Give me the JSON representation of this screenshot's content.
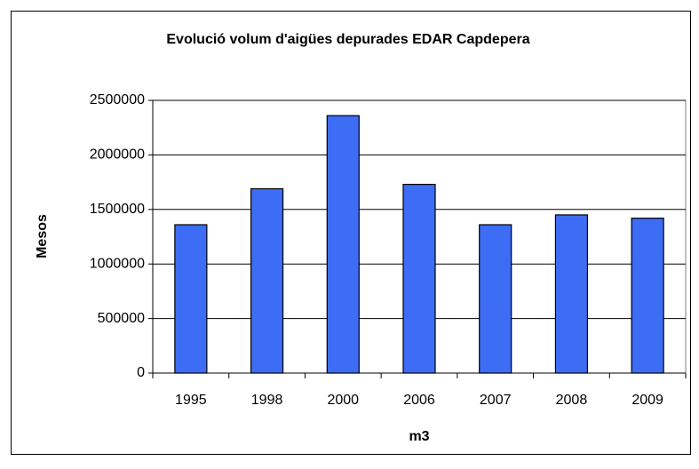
{
  "chart_data": {
    "type": "bar",
    "title": "Evolució volum d'aigües depurades EDAR Capdepera",
    "x_label": "m3",
    "y_label": "Mesos",
    "categories": [
      "1995",
      "1998",
      "2000",
      "2006",
      "2007",
      "2008",
      "2009"
    ],
    "values": [
      1360000,
      1690000,
      2360000,
      1730000,
      1360000,
      1450000,
      1420000
    ],
    "color": "#3d6cf5",
    "ylim": [
      0,
      2500000
    ],
    "yticks": [
      0,
      500000,
      1000000,
      1500000,
      2000000,
      2500000
    ],
    "grid": true
  }
}
